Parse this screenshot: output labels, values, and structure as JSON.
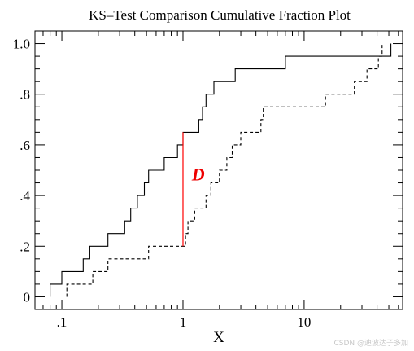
{
  "chart_data": {
    "type": "step",
    "title": "KS–Test Comparison Cumulative Fraction Plot",
    "xlabel": "X",
    "ylabel": "",
    "xscale": "log",
    "xlim": [
      0.06,
      65
    ],
    "ylim": [
      -0.05,
      1.05
    ],
    "xticks": [
      {
        "value": 0.1,
        "label": ".1"
      },
      {
        "value": 1,
        "label": "1"
      },
      {
        "value": 10,
        "label": "10"
      }
    ],
    "yticks": [
      {
        "value": 0,
        "label": "0"
      },
      {
        "value": 0.2,
        "label": ".2"
      },
      {
        "value": 0.4,
        "label": ".4"
      },
      {
        "value": 0.6,
        "label": ".6"
      },
      {
        "value": 0.8,
        "label": ".8"
      },
      {
        "value": 1.0,
        "label": "1.0"
      }
    ],
    "series": [
      {
        "style": "solid",
        "color": "#000000",
        "x": [
          0.08,
          0.1,
          0.15,
          0.17,
          0.24,
          0.33,
          0.37,
          0.42,
          0.48,
          0.52,
          0.7,
          0.9,
          1.0,
          1.35,
          1.45,
          1.55,
          1.8,
          2.7,
          7.0,
          52
        ],
        "y": [
          0.05,
          0.1,
          0.15,
          0.2,
          0.25,
          0.3,
          0.35,
          0.4,
          0.45,
          0.5,
          0.55,
          0.6,
          0.65,
          0.7,
          0.75,
          0.8,
          0.85,
          0.9,
          0.95,
          1.0
        ]
      },
      {
        "style": "dashed",
        "color": "#000000",
        "x": [
          0.11,
          0.18,
          0.24,
          0.52,
          1.05,
          1.1,
          1.25,
          1.55,
          1.7,
          2.0,
          2.3,
          2.55,
          3.0,
          4.4,
          4.6,
          15.0,
          26.0,
          33.0,
          41.0,
          44.0
        ],
        "y": [
          0.05,
          0.1,
          0.15,
          0.2,
          0.25,
          0.3,
          0.35,
          0.4,
          0.45,
          0.5,
          0.55,
          0.6,
          0.65,
          0.7,
          0.75,
          0.8,
          0.85,
          0.9,
          0.95,
          1.0
        ]
      }
    ],
    "annotations": [
      {
        "type": "d_line",
        "x": 1.0,
        "y_from": 0.2,
        "y_to": 0.65,
        "color": "#ff0000"
      },
      {
        "type": "label",
        "text": "D",
        "x": 1.18,
        "y": 0.46,
        "color": "#ee0000"
      }
    ]
  },
  "watermark": "CSDN @迪波达子多加"
}
